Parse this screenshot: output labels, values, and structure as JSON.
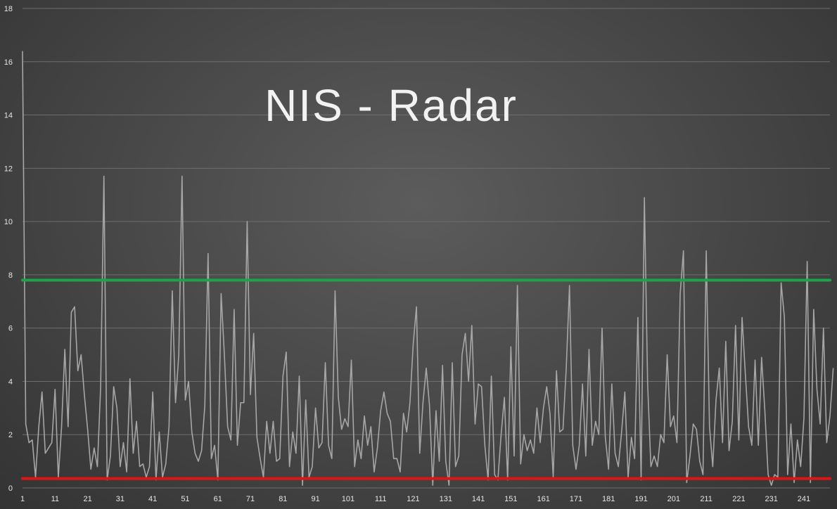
{
  "chart_data": {
    "type": "line",
    "title": "NIS - Radar",
    "xlabel": "",
    "ylabel": "",
    "xlim": [
      1,
      249
    ],
    "ylim": [
      0,
      18
    ],
    "y_ticks": [
      "0",
      "2",
      "4",
      "6",
      "8",
      "10",
      "12",
      "14",
      "16",
      "18"
    ],
    "x_ticks": [
      "1",
      "11",
      "21",
      "31",
      "41",
      "51",
      "61",
      "71",
      "81",
      "91",
      "101",
      "111",
      "121",
      "131",
      "141",
      "151",
      "161",
      "171",
      "181",
      "191",
      "201",
      "211",
      "221",
      "231",
      "241"
    ],
    "grid": true,
    "legend": "none",
    "series": [
      {
        "color": "#a6a6a6",
        "values": [
          16.4,
          2.4,
          1.7,
          1.8,
          0.4,
          2.3,
          3.6,
          1.3,
          1.5,
          1.7,
          3.7,
          0.4,
          2.3,
          5.2,
          2.3,
          6.6,
          6.8,
          4.4,
          5.0,
          3.5,
          2.2,
          0.7,
          1.5,
          0.8,
          3.8,
          11.7,
          0.3,
          1.2,
          3.8,
          3.0,
          0.8,
          1.7,
          0.6,
          4.1,
          1.3,
          2.5,
          0.8,
          0.9,
          0.4,
          0.8,
          3.6,
          0.3,
          2.1,
          0.4,
          0.9,
          2.3,
          7.4,
          3.2,
          5.0,
          11.7,
          3.3,
          4.0,
          2.1,
          1.3,
          1.0,
          1.4,
          3.1,
          8.8,
          1.1,
          1.6,
          0.3,
          7.3,
          5.0,
          2.3,
          1.8,
          6.7,
          1.6,
          3.2,
          3.2,
          10.0,
          3.5,
          5.8,
          1.9,
          1.1,
          0.4,
          2.5,
          1.3,
          2.5,
          1.0,
          1.1,
          4.2,
          5.1,
          0.8,
          2.1,
          1.3,
          4.2,
          0.1,
          3.3,
          0.4,
          0.8,
          3.0,
          1.5,
          1.7,
          4.7,
          1.6,
          1.1,
          7.4,
          3.4,
          2.2,
          2.6,
          2.3,
          4.8,
          0.8,
          1.8,
          1.1,
          2.7,
          1.6,
          2.3,
          0.6,
          1.5,
          2.9,
          3.6,
          2.8,
          2.5,
          1.1,
          1.1,
          0.6,
          2.8,
          2.1,
          3.2,
          5.4,
          6.8,
          1.3,
          3.2,
          4.5,
          3.1,
          0.1,
          2.9,
          1.0,
          4.6,
          1.0,
          0.1,
          4.7,
          0.8,
          1.2,
          5.0,
          5.8,
          4.0,
          6.1,
          2.4,
          3.9,
          3.8,
          1.6,
          0.3,
          4.2,
          0.5,
          0.3,
          2.0,
          3.4,
          0.3,
          5.3,
          1.2,
          7.6,
          0.9,
          2.0,
          1.4,
          1.8,
          1.3,
          3.0,
          1.7,
          3.0,
          3.8,
          2.8,
          0.4,
          4.4,
          2.1,
          2.2,
          4.5,
          7.6,
          1.6,
          0.7,
          1.6,
          3.9,
          1.2,
          5.2,
          1.6,
          2.5,
          2.0,
          6.0,
          1.9,
          0.7,
          3.9,
          1.3,
          0.8,
          2.1,
          3.6,
          0.4,
          1.9,
          1.1,
          6.4,
          0.3,
          10.9,
          3.9,
          0.8,
          1.2,
          0.8,
          2.0,
          1.7,
          5.0,
          2.3,
          2.7,
          1.7,
          7.3,
          8.9,
          0.2,
          1.2,
          2.4,
          2.2,
          1.0,
          0.5,
          8.9,
          2.3,
          0.8,
          3.3,
          4.5,
          1.7,
          5.5,
          1.4,
          2.5,
          6.1,
          1.8,
          6.4,
          4.3,
          2.3,
          1.6,
          4.8,
          1.6,
          4.9,
          2.9,
          0.5,
          0.1,
          0.5,
          0.4,
          7.7,
          6.4,
          0.5,
          2.4,
          0.2,
          1.8,
          0.8,
          2.6,
          8.5,
          0.2,
          6.7,
          3.7,
          2.4,
          6.0,
          1.7,
          2.7,
          4.5
        ]
      }
    ],
    "reference_lines": [
      {
        "value": 7.8,
        "color": "#1fa34a"
      },
      {
        "value": 0.35,
        "color": "#e01414"
      }
    ]
  }
}
